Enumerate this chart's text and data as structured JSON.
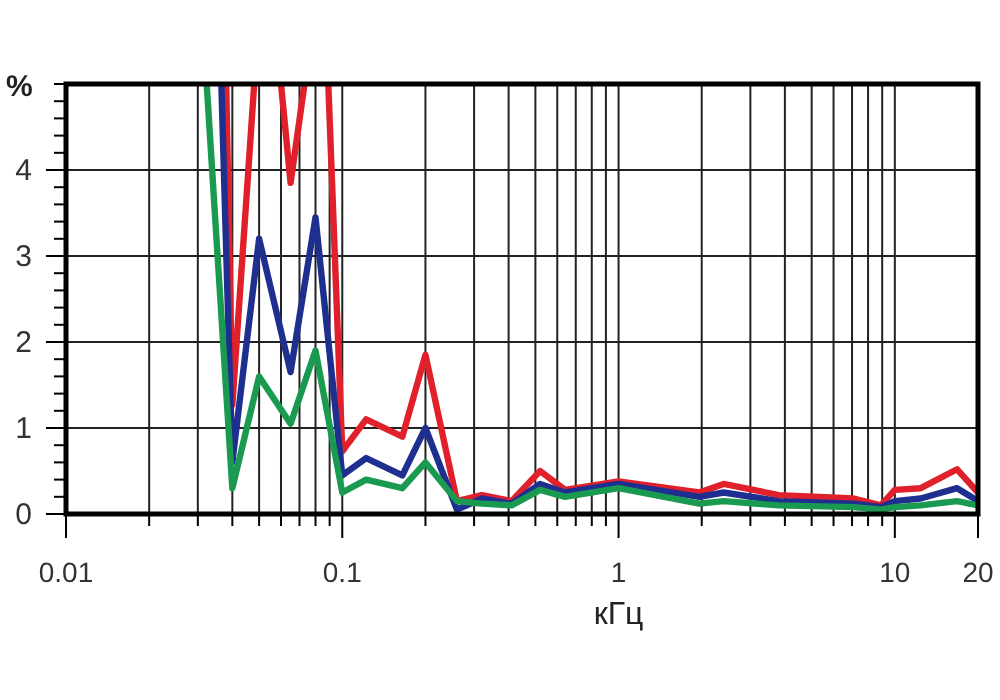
{
  "chart_data": {
    "type": "line",
    "xlabel": "кГц",
    "ylabel": "%",
    "log": "x",
    "grid": true,
    "line_style": "solid",
    "marker": "none",
    "xlim": [
      0.01,
      20
    ],
    "ylim": [
      0,
      5
    ],
    "xticks": [
      0.01,
      {
        "value": 0.02,
        "label": null
      },
      {
        "value": 0.03,
        "label": null
      },
      {
        "value": 0.04,
        "label": null
      },
      {
        "value": 0.05,
        "label": null
      },
      {
        "value": 0.06,
        "label": null
      },
      {
        "value": 0.07,
        "label": null
      },
      {
        "value": 0.08,
        "label": null
      },
      {
        "value": 0.09,
        "label": null
      },
      0.1,
      {
        "value": 0.2,
        "label": null
      },
      {
        "value": 0.3,
        "label": null
      },
      {
        "value": 0.4,
        "label": null
      },
      {
        "value": 0.5,
        "label": null
      },
      {
        "value": 0.6,
        "label": null
      },
      {
        "value": 0.7,
        "label": null
      },
      {
        "value": 0.8,
        "label": null
      },
      {
        "value": 0.9,
        "label": null
      },
      1,
      {
        "value": 2,
        "label": null
      },
      {
        "value": 3,
        "label": null
      },
      {
        "value": 4,
        "label": null
      },
      {
        "value": 5,
        "label": null
      },
      {
        "value": 6,
        "label": null
      },
      {
        "value": 7,
        "label": null
      },
      {
        "value": 8,
        "label": null
      },
      {
        "value": 9,
        "label": null
      },
      10,
      20
    ],
    "yticks": [
      0,
      {
        "value": 0.2,
        "label": null
      },
      {
        "value": 0.4,
        "label": null
      },
      {
        "value": 0.6,
        "label": null
      },
      {
        "value": 0.8,
        "label": null
      },
      1,
      {
        "value": 1.2,
        "label": null
      },
      {
        "value": 1.4,
        "label": null
      },
      {
        "value": 1.6,
        "label": null
      },
      {
        "value": 1.8,
        "label": null
      },
      2,
      {
        "value": 2.2,
        "label": null
      },
      {
        "value": 2.4,
        "label": null
      },
      {
        "value": 2.6,
        "label": null
      },
      {
        "value": 2.8,
        "label": null
      },
      3,
      {
        "value": 3.2,
        "label": null
      },
      {
        "value": 3.4,
        "label": null
      },
      {
        "value": 3.6,
        "label": null
      },
      {
        "value": 3.8,
        "label": null
      },
      4,
      {
        "value": 4.2,
        "label": null
      },
      {
        "value": 4.4,
        "label": null
      },
      {
        "value": 4.6,
        "label": null
      },
      {
        "value": 4.8,
        "label": null
      },
      {
        "value": 5,
        "label": null
      }
    ],
    "series": [
      {
        "color": "#e0202a",
        "x": [
          0.038,
          0.04,
          0.048,
          null,
          0.06,
          0.065,
          0.073,
          null,
          0.089,
          0.1,
          0.122,
          0.165,
          0.2,
          0.26,
          0.32,
          0.41,
          0.52,
          0.64,
          1,
          1.96,
          2.4,
          3.8,
          7.1,
          8.9,
          10,
          12.4,
          16.8,
          20
        ],
        "values": [
          5,
          1.27,
          5,
          null,
          5,
          3.85,
          5,
          null,
          5,
          0.73,
          1.1,
          0.9,
          1.85,
          0.15,
          0.22,
          0.15,
          0.5,
          0.28,
          0.38,
          0.25,
          0.35,
          0.22,
          0.18,
          0.1,
          0.28,
          0.3,
          0.52,
          0.25
        ]
      },
      {
        "color": "#1f2f8f",
        "x": [
          0.0365,
          0.04,
          0.05,
          0.065,
          0.08,
          0.1,
          0.122,
          0.165,
          0.2,
          0.26,
          0.32,
          0.41,
          0.52,
          0.64,
          1,
          1.96,
          2.4,
          3.8,
          7.1,
          8.9,
          10,
          12.4,
          16.8,
          20
        ],
        "values": [
          5,
          0.6,
          3.2,
          1.65,
          3.45,
          0.45,
          0.65,
          0.45,
          1.0,
          0.05,
          0.18,
          0.12,
          0.35,
          0.25,
          0.35,
          0.2,
          0.25,
          0.15,
          0.12,
          0.08,
          0.15,
          0.18,
          0.3,
          0.15
        ]
      },
      {
        "color": "#1a9a50",
        "x": [
          0.0323,
          0.04,
          0.05,
          0.065,
          0.08,
          0.1,
          0.122,
          0.165,
          0.2,
          0.26,
          0.32,
          0.41,
          0.52,
          0.64,
          1,
          1.96,
          2.4,
          3.8,
          7.1,
          8.9,
          10,
          12.4,
          16.8,
          20
        ],
        "values": [
          5,
          0.3,
          1.6,
          1.05,
          1.9,
          0.25,
          0.4,
          0.3,
          0.6,
          0.15,
          0.12,
          0.1,
          0.28,
          0.2,
          0.3,
          0.12,
          0.15,
          0.1,
          0.08,
          0.05,
          0.08,
          0.1,
          0.15,
          0.1
        ]
      }
    ]
  }
}
